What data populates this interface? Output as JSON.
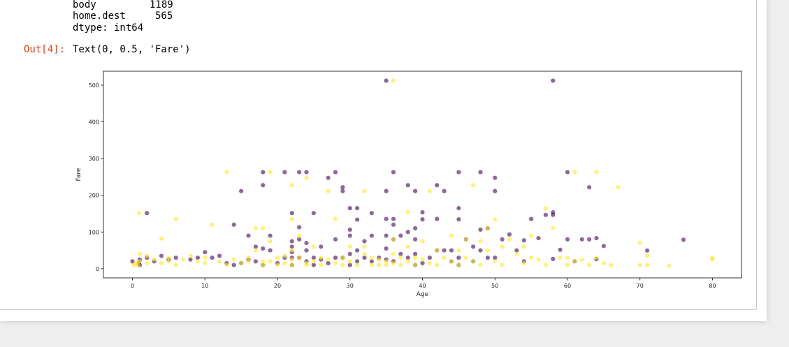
{
  "stdout": {
    "lines": [
      {
        "name": "body",
        "value": "1189"
      },
      {
        "name": "home.dest",
        "value": "565"
      }
    ],
    "dtype": "dtype: int64"
  },
  "output": {
    "prompt": "Out[4]:",
    "text": "Text(0, 0.5, 'Fare')"
  },
  "colors": {
    "purple": "#440154",
    "yellow": "#fde725",
    "prompt": "#d84315"
  },
  "chart_data": {
    "type": "scatter",
    "title": "",
    "xlabel": "Age",
    "ylabel": "Fare",
    "xlim": [
      -4,
      84
    ],
    "ylim": [
      -25,
      538
    ],
    "xticks": [
      0,
      10,
      20,
      30,
      40,
      50,
      60,
      70,
      80
    ],
    "yticks": [
      0,
      100,
      200,
      300,
      400,
      500
    ],
    "grid": false,
    "legend": "none",
    "alpha": 0.6,
    "series": [
      {
        "color": "#440154",
        "points": [
          [
            0,
            20
          ],
          [
            0.9,
            15
          ],
          [
            1,
            25
          ],
          [
            1,
            10
          ],
          [
            2,
            151.5
          ],
          [
            2,
            30
          ],
          [
            3,
            20
          ],
          [
            4,
            35
          ],
          [
            5,
            25
          ],
          [
            6,
            30
          ],
          [
            8,
            25
          ],
          [
            9,
            30
          ],
          [
            10,
            45
          ],
          [
            11,
            30
          ],
          [
            12,
            35
          ],
          [
            13,
            15
          ],
          [
            14,
            120
          ],
          [
            14,
            10
          ],
          [
            15,
            211.5
          ],
          [
            15,
            15
          ],
          [
            16,
            90
          ],
          [
            16,
            25
          ],
          [
            17,
            60
          ],
          [
            17,
            20
          ],
          [
            18,
            263
          ],
          [
            18,
            227.5
          ],
          [
            18,
            55
          ],
          [
            18,
            10
          ],
          [
            19,
            90
          ],
          [
            19,
            50
          ],
          [
            20,
            15
          ],
          [
            21,
            263
          ],
          [
            21,
            30
          ],
          [
            22,
            151.5
          ],
          [
            22,
            75
          ],
          [
            22,
            60
          ],
          [
            22,
            45
          ],
          [
            22,
            30
          ],
          [
            22,
            10
          ],
          [
            23,
            263
          ],
          [
            23,
            113
          ],
          [
            23,
            80
          ],
          [
            23,
            30
          ],
          [
            24,
            263
          ],
          [
            24,
            70
          ],
          [
            24,
            50
          ],
          [
            24,
            20
          ],
          [
            25,
            151.5
          ],
          [
            25,
            30
          ],
          [
            25,
            10
          ],
          [
            26,
            60
          ],
          [
            26,
            25
          ],
          [
            27,
            247.5
          ],
          [
            27,
            15
          ],
          [
            28,
            263
          ],
          [
            28,
            80
          ],
          [
            28,
            30
          ],
          [
            29,
            221.8
          ],
          [
            29,
            211.5
          ],
          [
            29,
            30
          ],
          [
            30,
            164.9
          ],
          [
            30,
            106.4
          ],
          [
            30,
            90
          ],
          [
            30,
            40
          ],
          [
            30,
            10
          ],
          [
            31,
            164.9
          ],
          [
            31,
            133.7
          ],
          [
            31,
            50
          ],
          [
            31,
            20
          ],
          [
            32,
            75
          ],
          [
            32,
            30
          ],
          [
            33,
            151.5
          ],
          [
            33,
            90
          ],
          [
            33,
            20
          ],
          [
            34,
            30
          ],
          [
            35,
            512.3
          ],
          [
            35,
            211.5
          ],
          [
            35,
            135.6
          ],
          [
            35,
            90
          ],
          [
            35,
            55
          ],
          [
            35,
            25
          ],
          [
            36,
            263
          ],
          [
            36,
            135.6
          ],
          [
            36,
            120
          ],
          [
            36,
            80
          ],
          [
            36,
            20
          ],
          [
            37,
            90
          ],
          [
            37,
            40
          ],
          [
            38,
            227.5
          ],
          [
            38,
            100
          ],
          [
            38,
            30
          ],
          [
            39,
            211.5
          ],
          [
            39,
            110
          ],
          [
            39,
            80
          ],
          [
            39,
            40
          ],
          [
            39,
            10
          ],
          [
            40,
            153.5
          ],
          [
            40,
            134.5
          ],
          [
            40,
            15
          ],
          [
            41,
            30
          ],
          [
            42,
            227.5
          ],
          [
            42,
            135.6
          ],
          [
            42,
            50
          ],
          [
            43,
            211.5
          ],
          [
            43,
            50
          ],
          [
            44,
            50
          ],
          [
            44,
            20
          ],
          [
            45,
            263
          ],
          [
            45,
            164.9
          ],
          [
            45,
            134.5
          ],
          [
            45,
            30
          ],
          [
            45,
            10
          ],
          [
            46,
            80
          ],
          [
            47,
            60
          ],
          [
            47,
            20
          ],
          [
            48,
            263
          ],
          [
            48,
            106.4
          ],
          [
            48,
            50
          ],
          [
            49,
            110
          ],
          [
            49,
            30
          ],
          [
            50,
            247.5
          ],
          [
            50,
            211.5
          ],
          [
            50,
            30
          ],
          [
            51,
            80
          ],
          [
            52,
            93.5
          ],
          [
            53,
            50
          ],
          [
            54,
            77.3
          ],
          [
            54,
            20
          ],
          [
            55,
            135.6
          ],
          [
            56,
            83.2
          ],
          [
            57,
            146.5
          ],
          [
            58,
            512.3
          ],
          [
            58,
            153.5
          ],
          [
            58,
            146.5
          ],
          [
            58,
            26.6
          ],
          [
            59,
            51.5
          ],
          [
            60,
            263
          ],
          [
            60,
            80
          ],
          [
            61,
            20
          ],
          [
            62,
            80
          ],
          [
            63,
            221.8
          ],
          [
            63,
            80
          ],
          [
            64,
            83.2
          ],
          [
            64,
            26
          ],
          [
            65,
            61.9
          ],
          [
            71,
            49.5
          ],
          [
            76,
            78.9
          ]
        ]
      },
      {
        "color": "#fde725",
        "points": [
          [
            0.2,
            10
          ],
          [
            0.5,
            15
          ],
          [
            0.8,
            10
          ],
          [
            0.9,
            151.5
          ],
          [
            1,
            40
          ],
          [
            1,
            20
          ],
          [
            2,
            15
          ],
          [
            2,
            35
          ],
          [
            3,
            25
          ],
          [
            4,
            82
          ],
          [
            4,
            15
          ],
          [
            5,
            20
          ],
          [
            5,
            30
          ],
          [
            6,
            135
          ],
          [
            6,
            10
          ],
          [
            7,
            25
          ],
          [
            8,
            35
          ],
          [
            9,
            20
          ],
          [
            10,
            30
          ],
          [
            10,
            15
          ],
          [
            11,
            120
          ],
          [
            12,
            20
          ],
          [
            13,
            263
          ],
          [
            13,
            10
          ],
          [
            14,
            25
          ],
          [
            15,
            15
          ],
          [
            16,
            30
          ],
          [
            16,
            20
          ],
          [
            17,
            110
          ],
          [
            17,
            50
          ],
          [
            18,
            110
          ],
          [
            18,
            20
          ],
          [
            18,
            10
          ],
          [
            19,
            263
          ],
          [
            19,
            75
          ],
          [
            19,
            20
          ],
          [
            20,
            30
          ],
          [
            20,
            10
          ],
          [
            21,
            35
          ],
          [
            21,
            15
          ],
          [
            22,
            227.5
          ],
          [
            22,
            135
          ],
          [
            22,
            50
          ],
          [
            22,
            25
          ],
          [
            22,
            10
          ],
          [
            23,
            90
          ],
          [
            23,
            30
          ],
          [
            24,
            247.5
          ],
          [
            24,
            15
          ],
          [
            24,
            10
          ],
          [
            25,
            60
          ],
          [
            25,
            20
          ],
          [
            26,
            30
          ],
          [
            26,
            10
          ],
          [
            27,
            211.5
          ],
          [
            27,
            25
          ],
          [
            28,
            136
          ],
          [
            28,
            15
          ],
          [
            29,
            30
          ],
          [
            29,
            10
          ],
          [
            30,
            60
          ],
          [
            30,
            20
          ],
          [
            31,
            10
          ],
          [
            32,
            211.5
          ],
          [
            32,
            60
          ],
          [
            32,
            40
          ],
          [
            33,
            30
          ],
          [
            33,
            10
          ],
          [
            34,
            25
          ],
          [
            34,
            10
          ],
          [
            35,
            20
          ],
          [
            35,
            10
          ],
          [
            36,
            512.3
          ],
          [
            36,
            80
          ],
          [
            36,
            40
          ],
          [
            36,
            15
          ],
          [
            37,
            30
          ],
          [
            37,
            10
          ],
          [
            38,
            153.5
          ],
          [
            38,
            60
          ],
          [
            38,
            20
          ],
          [
            39,
            30
          ],
          [
            39,
            10
          ],
          [
            40,
            75
          ],
          [
            40,
            25
          ],
          [
            41,
            211.5
          ],
          [
            41,
            15
          ],
          [
            42,
            50
          ],
          [
            42,
            10
          ],
          [
            43,
            30
          ],
          [
            44,
            90
          ],
          [
            44,
            20
          ],
          [
            45,
            50
          ],
          [
            45,
            10
          ],
          [
            46,
            79
          ],
          [
            46,
            30
          ],
          [
            47,
            227.5
          ],
          [
            47,
            20
          ],
          [
            48,
            75
          ],
          [
            48,
            10
          ],
          [
            49,
            110
          ],
          [
            49,
            50
          ],
          [
            50,
            134.5
          ],
          [
            50,
            20
          ],
          [
            51,
            60
          ],
          [
            51,
            10
          ],
          [
            52,
            80
          ],
          [
            53,
            40
          ],
          [
            54,
            60
          ],
          [
            54,
            15
          ],
          [
            55,
            90
          ],
          [
            55,
            30
          ],
          [
            56,
            25
          ],
          [
            57,
            164.9
          ],
          [
            57,
            10
          ],
          [
            58,
            110
          ],
          [
            59,
            30
          ],
          [
            60,
            30
          ],
          [
            60,
            10
          ],
          [
            61,
            263
          ],
          [
            61,
            20
          ],
          [
            62,
            25
          ],
          [
            63,
            10
          ],
          [
            64,
            263
          ],
          [
            64,
            30
          ],
          [
            65,
            15
          ],
          [
            66,
            10
          ],
          [
            67,
            221.8
          ],
          [
            70,
            71
          ],
          [
            70,
            10
          ],
          [
            71,
            35
          ],
          [
            71,
            10
          ],
          [
            74,
            7.8
          ],
          [
            80,
            30
          ],
          [
            80,
            25
          ]
        ]
      }
    ]
  }
}
